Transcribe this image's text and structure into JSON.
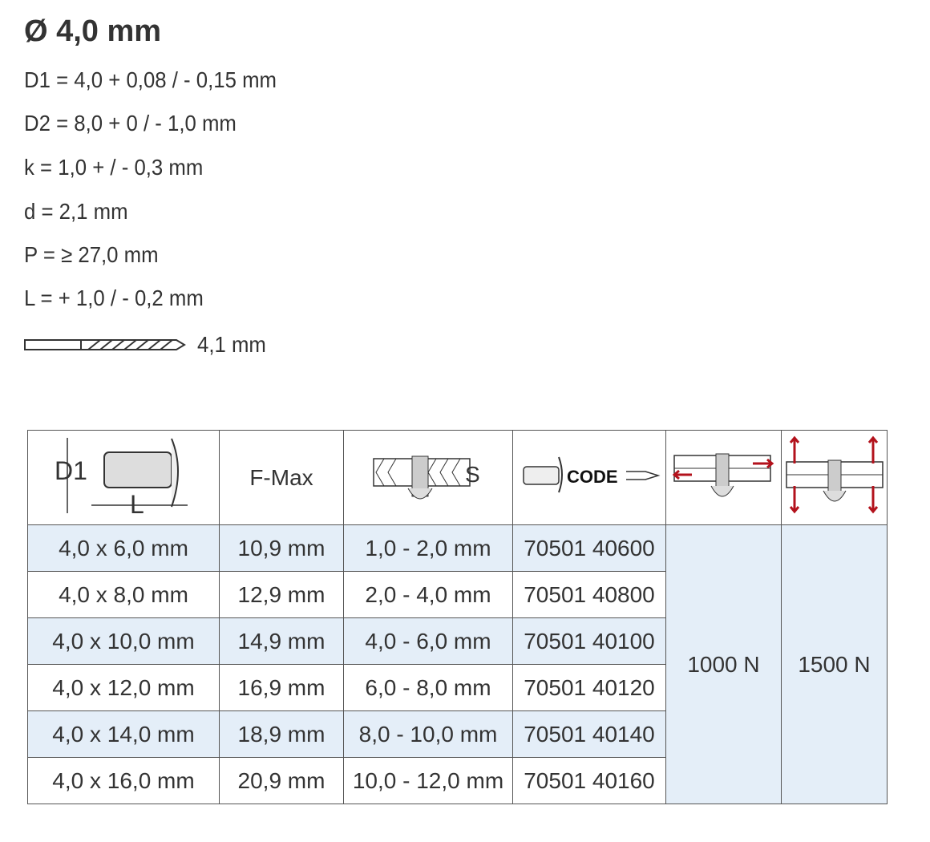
{
  "title": "Ø 4,0 mm",
  "specs": [
    "D1 = 4,0 + 0,08 / - 0,15 mm",
    "D2 = 8,0 + 0 / - 1,0 mm",
    "k = 1,0 + / - 0,3 mm",
    "d = 2,1 mm",
    "P = ≥ 27,0 mm",
    "L = + 1,0 / - 0,2 mm"
  ],
  "drill": {
    "icon": "drill-bit-icon",
    "value": "4,1 mm"
  },
  "table": {
    "header": {
      "d1_label": "D1",
      "l_label": "L",
      "fmax": "F-Max",
      "s_label": "S",
      "code_label": "CODE"
    },
    "rows": [
      {
        "size": "4,0 x 6,0 mm",
        "fmax": "10,9 mm",
        "grip": "1,0 - 2,0 mm",
        "code": "70501 40600"
      },
      {
        "size": "4,0 x 8,0 mm",
        "fmax": "12,9 mm",
        "grip": "2,0 - 4,0 mm",
        "code": "70501 40800"
      },
      {
        "size": "4,0 x 10,0 mm",
        "fmax": "14,9 mm",
        "grip": "4,0 - 6,0 mm",
        "code": "70501 40100"
      },
      {
        "size": "4,0 x 12,0 mm",
        "fmax": "16,9 mm",
        "grip": "6,0 - 8,0 mm",
        "code": "70501 40120"
      },
      {
        "size": "4,0 x 14,0 mm",
        "fmax": "18,9 mm",
        "grip": "8,0 - 10,0 mm",
        "code": "70501 40140"
      },
      {
        "size": "4,0 x 16,0 mm",
        "fmax": "20,9 mm",
        "grip": "10,0 - 12,0 mm",
        "code": "70501 40160"
      }
    ],
    "shear": "1000 N",
    "tensile": "1500 N"
  },
  "colors": {
    "row_highlight": "#e4eef8",
    "arrow": "#b3121c"
  }
}
